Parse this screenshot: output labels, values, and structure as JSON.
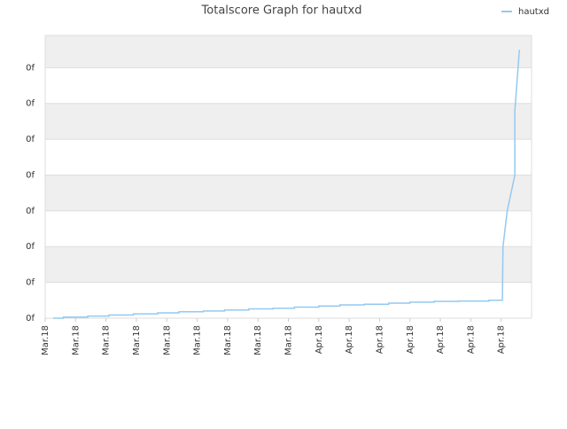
{
  "chart_data": {
    "type": "line",
    "title": "Totalscore Graph for hautxd",
    "legend": "top-right",
    "grid": true,
    "x": [
      0.26,
      0.6,
      0.6,
      1.4,
      1.4,
      2.1,
      2.1,
      2.9,
      2.9,
      3.7,
      3.7,
      4.4,
      4.4,
      5.2,
      5.2,
      5.9,
      5.9,
      6.7,
      6.7,
      7.5,
      7.5,
      8.2,
      8.2,
      9.0,
      9.0,
      9.7,
      9.7,
      10.5,
      10.5,
      11.3,
      11.3,
      12.0,
      12.0,
      12.8,
      12.8,
      13.6,
      13.6,
      14.6,
      14.6,
      15.04,
      15.06,
      15.2,
      15.45,
      15.45,
      15.6
    ],
    "series": [
      {
        "name": "hautxd",
        "color": "#94c9f0",
        "values": [
          0,
          0,
          0.03,
          0.03,
          0.06,
          0.06,
          0.09,
          0.09,
          0.12,
          0.12,
          0.15,
          0.15,
          0.18,
          0.18,
          0.2,
          0.2,
          0.23,
          0.23,
          0.26,
          0.26,
          0.28,
          0.28,
          0.31,
          0.31,
          0.34,
          0.34,
          0.37,
          0.37,
          0.39,
          0.39,
          0.42,
          0.42,
          0.45,
          0.45,
          0.47,
          0.47,
          0.48,
          0.48,
          0.5,
          0.5,
          2.0,
          3.0,
          4.0,
          5.8,
          7.5
        ]
      }
    ],
    "xlim": [
      0,
      16
    ],
    "xticks": [
      {
        "value": 0,
        "label": "Mar.18"
      },
      {
        "value": 1,
        "label": "Mar.18"
      },
      {
        "value": 2,
        "label": "Mar.18"
      },
      {
        "value": 3,
        "label": "Mar.18"
      },
      {
        "value": 4,
        "label": "Mar.18"
      },
      {
        "value": 5,
        "label": "Mar.18"
      },
      {
        "value": 6,
        "label": "Mar.18"
      },
      {
        "value": 7,
        "label": "Mar.18"
      },
      {
        "value": 8,
        "label": "Mar.18"
      },
      {
        "value": 9,
        "label": "Apr.18"
      },
      {
        "value": 10,
        "label": "Apr.18"
      },
      {
        "value": 11,
        "label": "Apr.18"
      },
      {
        "value": 12,
        "label": "Apr.18"
      },
      {
        "value": 13,
        "label": "Apr.18"
      },
      {
        "value": 14,
        "label": "Apr.18"
      },
      {
        "value": 15,
        "label": "Apr.18"
      }
    ],
    "ylim": [
      0,
      7.9
    ],
    "yticks": [
      {
        "value": 0,
        "label": "0f"
      },
      {
        "value": 1,
        "label": "0f"
      },
      {
        "value": 2,
        "label": "0f"
      },
      {
        "value": 3,
        "label": "0f"
      },
      {
        "value": 4,
        "label": "0f"
      },
      {
        "value": 5,
        "label": "0f"
      },
      {
        "value": 6,
        "label": "0f"
      },
      {
        "value": 7,
        "label": "0f"
      }
    ]
  }
}
